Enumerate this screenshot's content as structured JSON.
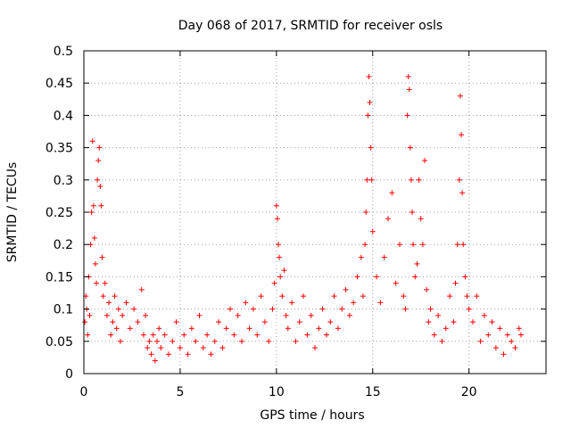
{
  "chart_data": {
    "type": "scatter",
    "title": "Day 068 of 2017, SRMTID for receiver osls",
    "xlabel": "GPS time / hours",
    "ylabel": "SRMTID / TECUs",
    "xlim": [
      0,
      24
    ],
    "ylim": [
      0,
      0.5
    ],
    "xticks": [
      0,
      5,
      10,
      15,
      20
    ],
    "xtick_labels": [
      "0",
      "5",
      "10",
      "15",
      "20"
    ],
    "yticks": [
      0,
      0.05,
      0.1,
      0.15,
      0.2,
      0.25,
      0.3,
      0.35,
      0.4,
      0.45,
      0.5
    ],
    "ytick_labels": [
      "0",
      "0.05",
      "0.1",
      "0.15",
      "0.2",
      "0.25",
      "0.3",
      "0.35",
      "0.4",
      "0.45",
      "0.5"
    ],
    "grid": true,
    "legend": "none",
    "marker": "+",
    "color": "#ff0000",
    "series": [
      {
        "name": "SRMTID",
        "x": [
          0.05,
          0.1,
          0.15,
          0.2,
          0.25,
          0.3,
          0.35,
          0.4,
          0.45,
          0.5,
          0.55,
          0.6,
          0.65,
          0.7,
          0.75,
          0.8,
          0.85,
          0.9,
          0.95,
          1.0,
          1.1,
          1.2,
          1.3,
          1.4,
          1.5,
          1.6,
          1.7,
          1.8,
          1.9,
          2.0,
          2.2,
          2.4,
          2.6,
          2.8,
          3.0,
          3.1,
          3.2,
          3.3,
          3.4,
          3.5,
          3.6,
          3.7,
          3.8,
          3.9,
          4.0,
          4.2,
          4.4,
          4.6,
          4.8,
          5.0,
          5.2,
          5.4,
          5.6,
          5.8,
          6.0,
          6.2,
          6.4,
          6.6,
          6.8,
          7.0,
          7.2,
          7.4,
          7.6,
          7.8,
          8.0,
          8.2,
          8.4,
          8.6,
          8.8,
          9.0,
          9.2,
          9.4,
          9.6,
          9.8,
          9.9,
          10.0,
          10.05,
          10.1,
          10.15,
          10.2,
          10.3,
          10.4,
          10.5,
          10.6,
          10.8,
          11.0,
          11.2,
          11.4,
          11.6,
          11.8,
          12.0,
          12.2,
          12.4,
          12.6,
          12.8,
          13.0,
          13.2,
          13.4,
          13.6,
          13.8,
          14.0,
          14.2,
          14.4,
          14.5,
          14.6,
          14.65,
          14.7,
          14.75,
          14.8,
          14.85,
          14.9,
          14.95,
          15.0,
          15.2,
          15.4,
          15.6,
          15.8,
          16.0,
          16.2,
          16.4,
          16.6,
          16.7,
          16.8,
          16.85,
          16.9,
          16.95,
          17.0,
          17.05,
          17.1,
          17.2,
          17.3,
          17.4,
          17.5,
          17.6,
          17.7,
          17.8,
          17.9,
          18.0,
          18.2,
          18.4,
          18.6,
          18.8,
          19.0,
          19.2,
          19.3,
          19.4,
          19.5,
          19.55,
          19.6,
          19.65,
          19.7,
          19.8,
          19.9,
          20.0,
          20.2,
          20.4,
          20.6,
          20.8,
          21.0,
          21.2,
          21.4,
          21.6,
          21.8,
          22.0,
          22.2,
          22.4,
          22.6,
          22.7
        ],
        "y": [
          0.08,
          0.12,
          0.1,
          0.06,
          0.15,
          0.09,
          0.2,
          0.25,
          0.36,
          0.26,
          0.21,
          0.17,
          0.14,
          0.3,
          0.33,
          0.35,
          0.29,
          0.26,
          0.18,
          0.12,
          0.14,
          0.09,
          0.11,
          0.06,
          0.08,
          0.12,
          0.07,
          0.1,
          0.05,
          0.09,
          0.11,
          0.07,
          0.1,
          0.08,
          0.13,
          0.06,
          0.09,
          0.04,
          0.05,
          0.03,
          0.06,
          0.02,
          0.05,
          0.07,
          0.04,
          0.06,
          0.03,
          0.05,
          0.08,
          0.04,
          0.06,
          0.03,
          0.07,
          0.05,
          0.09,
          0.04,
          0.06,
          0.03,
          0.05,
          0.08,
          0.04,
          0.07,
          0.1,
          0.06,
          0.09,
          0.05,
          0.11,
          0.07,
          0.1,
          0.06,
          0.12,
          0.08,
          0.05,
          0.1,
          0.14,
          0.26,
          0.24,
          0.2,
          0.18,
          0.15,
          0.12,
          0.16,
          0.09,
          0.07,
          0.11,
          0.05,
          0.08,
          0.12,
          0.06,
          0.09,
          0.04,
          0.07,
          0.1,
          0.06,
          0.08,
          0.12,
          0.07,
          0.1,
          0.13,
          0.09,
          0.11,
          0.15,
          0.18,
          0.12,
          0.2,
          0.25,
          0.3,
          0.4,
          0.46,
          0.42,
          0.35,
          0.3,
          0.22,
          0.15,
          0.11,
          0.18,
          0.24,
          0.28,
          0.14,
          0.2,
          0.12,
          0.1,
          0.4,
          0.46,
          0.44,
          0.35,
          0.3,
          0.25,
          0.2,
          0.15,
          0.17,
          0.3,
          0.24,
          0.2,
          0.33,
          0.13,
          0.08,
          0.1,
          0.06,
          0.09,
          0.05,
          0.07,
          0.12,
          0.08,
          0.14,
          0.2,
          0.3,
          0.43,
          0.37,
          0.28,
          0.2,
          0.15,
          0.12,
          0.1,
          0.08,
          0.12,
          0.05,
          0.09,
          0.06,
          0.08,
          0.04,
          0.07,
          0.03,
          0.06,
          0.05,
          0.04,
          0.07,
          0.06
        ]
      }
    ]
  }
}
